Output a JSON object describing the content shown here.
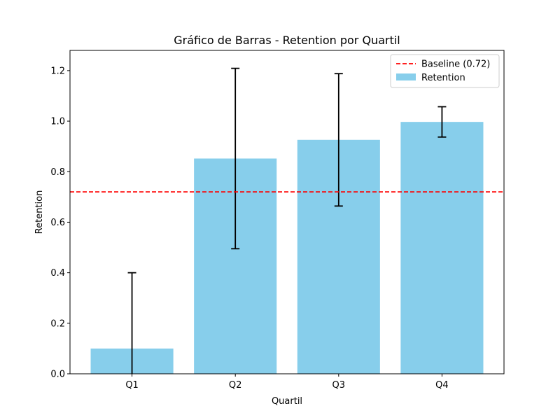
{
  "chart_data": {
    "type": "bar",
    "title": "Gráfico de Barras - Retention por Quartil",
    "xlabel": "Quartil",
    "ylabel": "Retention",
    "categories": [
      "Q1",
      "Q2",
      "Q3",
      "Q4"
    ],
    "series": [
      {
        "name": "Retention",
        "values": [
          0.1,
          0.852,
          0.926,
          0.997
        ],
        "errors": [
          0.3,
          0.357,
          0.262,
          0.06
        ],
        "color": "#87CEEB"
      }
    ],
    "baseline": {
      "label": "Baseline (0.72)",
      "value": 0.72,
      "color": "#ff0000",
      "style": "dashed"
    },
    "ylim": [
      0,
      1.28
    ],
    "yticks": [
      "0.0",
      "0.2",
      "0.4",
      "0.6",
      "0.8",
      "1.0",
      "1.2"
    ],
    "grid": false,
    "legend_position": "top-right"
  }
}
